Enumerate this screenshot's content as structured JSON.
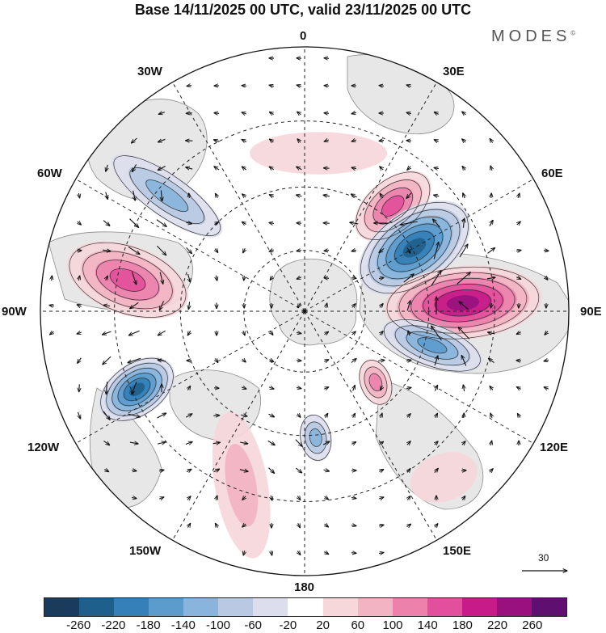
{
  "title": "Base 14/11/2025 00 UTC, valid 23/11/2025 00 UTC",
  "brand": {
    "name": "MODES",
    "mark": "©"
  },
  "longitude_labels": [
    "0",
    "30E",
    "60E",
    "90E",
    "120E",
    "150E",
    "180",
    "150W",
    "120W",
    "90W",
    "60W",
    "30W"
  ],
  "reference_vector": {
    "value": "30"
  },
  "colorbar": {
    "ticks": [
      "-260",
      "-220",
      "-180",
      "-140",
      "-100",
      "-60",
      "-20",
      "20",
      "60",
      "100",
      "140",
      "180",
      "220",
      "260"
    ],
    "colors": [
      "#1a3b5c",
      "#1f5f8b",
      "#3580b8",
      "#5b9ccc",
      "#89b4db",
      "#b9c9e3",
      "#dcdeee",
      "#ffffff",
      "#f6d7da",
      "#f2b3c2",
      "#ec82ac",
      "#e2509b",
      "#c71b8a",
      "#98117d",
      "#5e0f70"
    ]
  },
  "anomalies": [
    {
      "name": "high-north-atlantic",
      "lon": 40,
      "dist": 0.52,
      "rx": 0.17,
      "ry": 0.1,
      "rot": -40,
      "value": 170
    },
    {
      "name": "low-barents",
      "lon": 60,
      "dist": 0.48,
      "rx": 0.24,
      "ry": 0.14,
      "rot": -35,
      "value": -250
    },
    {
      "name": "high-siberia",
      "lon": 87,
      "dist": 0.6,
      "rx": 0.3,
      "ry": 0.14,
      "rot": -5,
      "value": 230
    },
    {
      "name": "low-central-asia",
      "lon": 105,
      "dist": 0.5,
      "rx": 0.2,
      "ry": 0.08,
      "rot": 20,
      "value": -150
    },
    {
      "name": "high-east-asia",
      "lon": 135,
      "dist": 0.38,
      "rx": 0.09,
      "ry": 0.06,
      "rot": 70,
      "value": 110
    },
    {
      "name": "high-japan",
      "lon": 140,
      "dist": 0.82,
      "rx": 0.13,
      "ry": 0.09,
      "rot": -20,
      "value": 50
    },
    {
      "name": "low-pacific-north",
      "lon": 175,
      "dist": 0.48,
      "rx": 0.09,
      "ry": 0.06,
      "rot": 80,
      "value": -100
    },
    {
      "name": "high-pacific",
      "lon": -160,
      "dist": 0.7,
      "rx": 0.28,
      "ry": 0.1,
      "rot": 80,
      "value": 90
    },
    {
      "name": "low-alaska",
      "lon": -115,
      "dist": 0.7,
      "rx": 0.16,
      "ry": 0.1,
      "rot": -35,
      "value": -220
    },
    {
      "name": "high-canada",
      "lon": -80,
      "dist": 0.68,
      "rx": 0.24,
      "ry": 0.13,
      "rot": 20,
      "value": 160
    },
    {
      "name": "low-greenland-sea",
      "lon": -50,
      "dist": 0.68,
      "rx": 0.25,
      "ry": 0.08,
      "rot": 35,
      "value": -130
    },
    {
      "name": "high-northeast",
      "lon": 5,
      "dist": 0.6,
      "rx": 0.26,
      "ry": 0.08,
      "rot": 0,
      "value": 45
    }
  ]
}
